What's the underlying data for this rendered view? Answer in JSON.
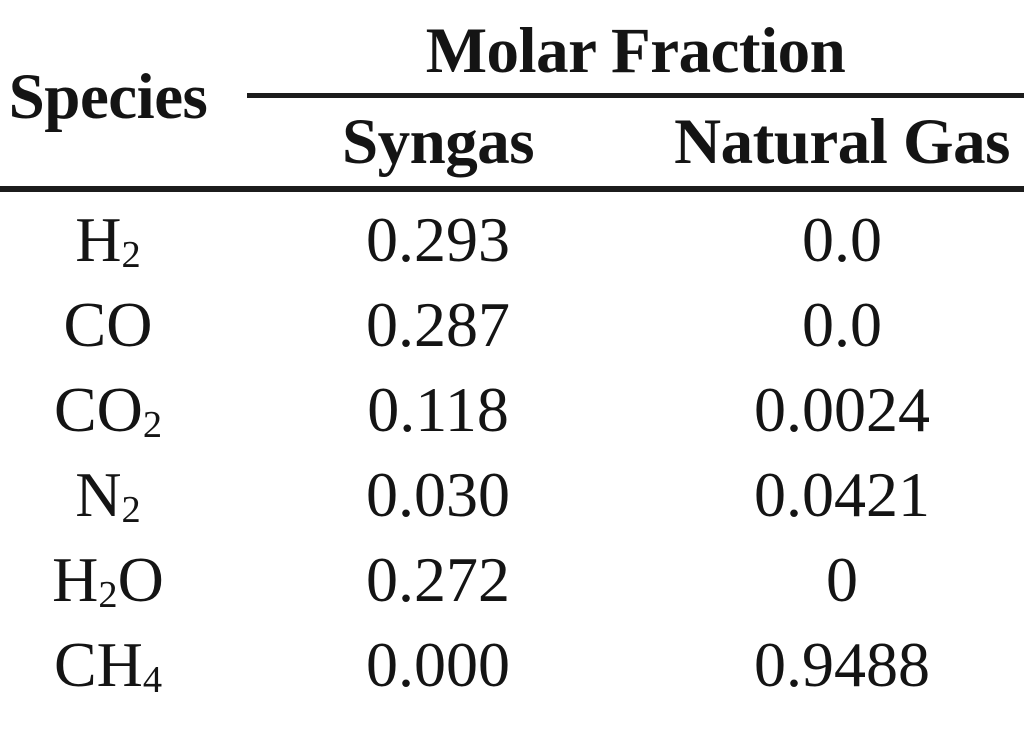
{
  "chart_data": {
    "type": "table",
    "row_header": "Species",
    "group_header": "Molar Fraction",
    "columns": [
      "Syngas",
      "Natural Gas"
    ],
    "rows": [
      {
        "species": "H2",
        "values": [
          "0.293",
          "0.0"
        ]
      },
      {
        "species": "CO",
        "values": [
          "0.287",
          "0.0"
        ]
      },
      {
        "species": "CO2",
        "values": [
          "0.118",
          "0.0024"
        ]
      },
      {
        "species": "N2",
        "values": [
          "0.030",
          "0.0421"
        ]
      },
      {
        "species": "H2O",
        "values": [
          "0.272",
          "0"
        ]
      },
      {
        "species": "CH4",
        "values": [
          "0.000",
          "0.9488"
        ]
      }
    ]
  },
  "colors": {
    "background": "#ffffff",
    "text": "#141414",
    "rule": "#1c1c1c"
  }
}
